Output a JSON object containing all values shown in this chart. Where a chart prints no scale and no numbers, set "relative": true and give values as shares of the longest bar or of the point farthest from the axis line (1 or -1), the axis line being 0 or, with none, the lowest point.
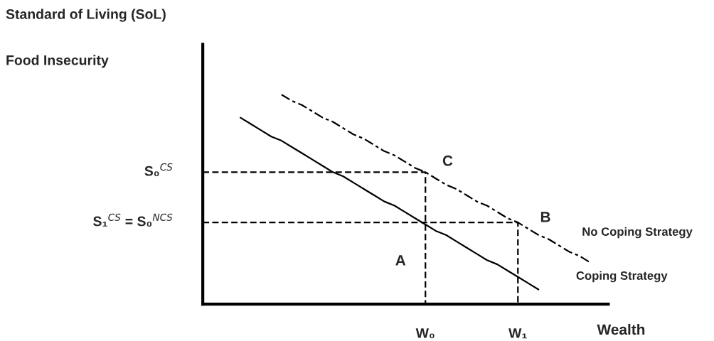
{
  "chart_data": {
    "type": "line",
    "relative": true,
    "title": "Standard of Living (SoL)",
    "xlabel": "Wealth",
    "grid": false,
    "legend": false,
    "categories": [
      null,
      null,
      null,
      null,
      null,
      null,
      null,
      null,
      null,
      null,
      null,
      null,
      null,
      null,
      null,
      null,
      null,
      null,
      null,
      null,
      null,
      "W₀",
      null,
      null,
      null,
      null,
      null,
      null,
      null,
      null,
      "W₁",
      null,
      null,
      null,
      null,
      null,
      null,
      null,
      null
    ],
    "series": [
      {
        "name": "Coping Strategy",
        "color": "#000000",
        "line_style": "solid",
        "values": [
          null,
          null,
          null,
          0.89,
          0.86,
          0.83,
          0.8,
          0.78,
          0.75,
          0.72,
          0.69,
          0.66,
          0.63,
          0.61,
          0.58,
          0.55,
          0.52,
          0.49,
          0.47,
          0.44,
          0.41,
          0.38,
          0.35,
          0.33,
          0.3,
          0.27,
          0.24,
          0.21,
          0.19,
          0.16,
          0.13,
          0.1,
          0.07,
          null,
          null,
          null,
          null,
          null,
          null
        ]
      },
      {
        "name": "No Coping Strategy",
        "color": "#000000",
        "line_style": "dashed",
        "values": [
          null,
          null,
          null,
          null,
          null,
          null,
          null,
          1.0,
          0.97,
          0.95,
          0.92,
          0.89,
          0.87,
          0.84,
          0.81,
          0.79,
          0.76,
          0.73,
          0.71,
          0.68,
          0.65,
          0.63,
          0.6,
          0.57,
          0.55,
          0.52,
          0.49,
          0.47,
          0.44,
          0.41,
          0.39,
          0.36,
          0.33,
          0.31,
          0.28,
          0.25,
          0.23,
          0.2,
          null
        ]
      }
    ],
    "ref_lines": [
      {
        "axis": "y",
        "value": 0.63,
        "label": "S₀$^{CS}$",
        "line_style": "dashed",
        "color": "#000000"
      },
      {
        "axis": "y",
        "value": 0.39,
        "label": "S₁$^{CS}$ = S₀$^{NCS}$",
        "line_style": "dashed",
        "color": "#000000"
      }
    ],
    "annotations": [
      "Food Insecurity",
      "C",
      "B",
      "A"
    ]
  }
}
